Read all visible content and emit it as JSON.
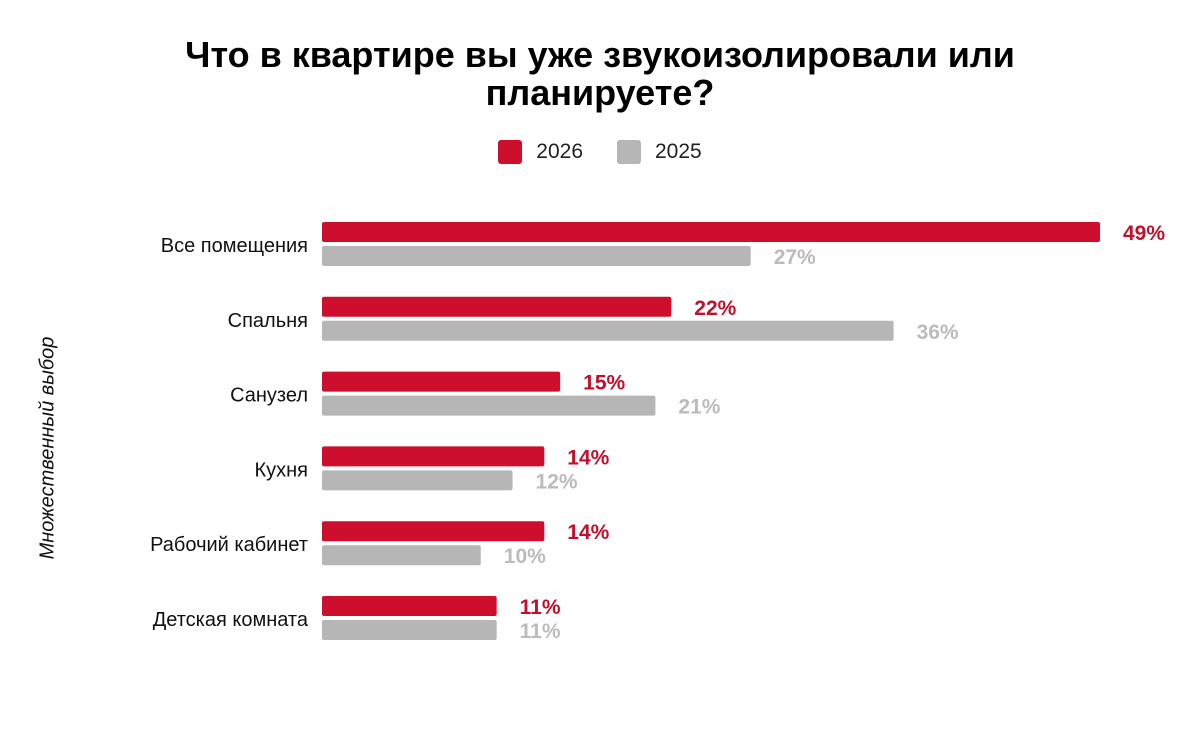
{
  "chart_data": {
    "type": "bar",
    "orientation": "horizontal",
    "title": "Что в квартире вы уже звукоизолировали или планируете?",
    "title_lines": [
      "Что в квартире вы уже звукоизолировали или",
      "планируете?"
    ],
    "ylabel": "Множественный выбор",
    "xlabel": "",
    "legend_position": "top",
    "grid": false,
    "unit": "%",
    "categories": [
      "Все помещения",
      "Спальня",
      "Санузел",
      "Кухня",
      "Рабочий кабинет",
      "Детская комната"
    ],
    "series": [
      {
        "name": "2026",
        "color": "#CE0E2D",
        "label_color": "#C0102C",
        "values": [
          49,
          22,
          15,
          14,
          14,
          11
        ]
      },
      {
        "name": "2025",
        "color": "#B6B6B6",
        "label_color": "#BBBBBB",
        "values": [
          27,
          36,
          21,
          12,
          10,
          11
        ]
      }
    ],
    "xlim": [
      0,
      49
    ]
  }
}
